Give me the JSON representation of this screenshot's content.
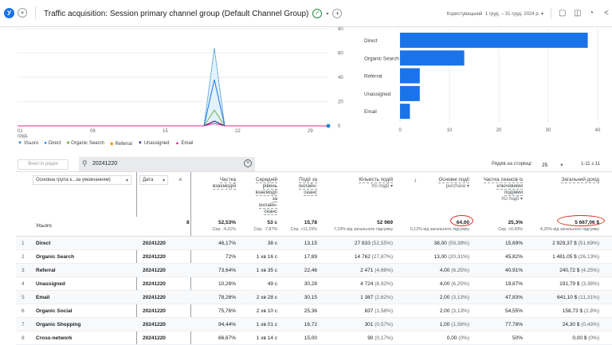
{
  "header": {
    "avatar": "У",
    "title": "Traffic acquisition: Session primary channel group (Default Channel Group)",
    "date_label": "Користувацький",
    "date_range": "1 груд. – 31 груд. 2024 р."
  },
  "line_chart": {
    "type": "line",
    "x_ticks": [
      "01",
      "08",
      "15",
      "22",
      "29"
    ],
    "x_sub": "груд.",
    "y_ticks": [
      "0",
      "20",
      "40",
      "60",
      "80"
    ],
    "ylim": [
      0,
      80
    ],
    "legend": [
      {
        "name": "Усього",
        "color": "#1e88c8",
        "mark": "▼"
      },
      {
        "name": "Direct",
        "color": "#1a73e8",
        "mark": "●"
      },
      {
        "name": "Organic Search",
        "color": "#7cb342",
        "mark": "■"
      },
      {
        "name": "Referral",
        "color": "#f29900",
        "mark": "◆"
      },
      {
        "name": "Unassigned",
        "color": "#1a237e",
        "mark": "▼"
      },
      {
        "name": "Email",
        "color": "#e52592",
        "mark": "▲"
      }
    ],
    "series_peak_day": 20,
    "peaks": {
      "Усього": 64,
      "Direct": 38,
      "Organic Search": 13,
      "Referral": 4,
      "Unassigned": 4,
      "Email": 2
    }
  },
  "chart_data": {
    "type": "bar",
    "orientation": "horizontal",
    "categories": [
      "Direct",
      "Organic Search",
      "Referral",
      "Unassigned",
      "Email"
    ],
    "values": [
      38,
      13,
      4,
      4,
      2
    ],
    "x_ticks": [
      "0",
      "10",
      "20",
      "30",
      "40"
    ],
    "xlim": [
      0,
      40
    ],
    "color": "#1a73e8"
  },
  "toolbar": {
    "add_rows": "Внести рядки",
    "search_value": "20241220",
    "rows_per_page_label": "Рядків на сторінці:",
    "rows_per_page": "25",
    "pagination": "1-11 з 11"
  },
  "table": {
    "dim1": "Основна група к...за умовчанням)",
    "dim2": "Дата",
    "headers": [
      {
        "label": "Частка взаємодій",
        "sub": ""
      },
      {
        "label": "Середній рівень взаємодії за онлайн-сеанс",
        "sub": ""
      },
      {
        "label": "Події за онлайн-сеанс",
        "sub": ""
      },
      {
        "label": "Кількість подій",
        "sub": "Усі події"
      },
      {
        "label": "Основні події",
        "sub": "purchase"
      },
      {
        "label": "Частка сеансів із ключовими подіями",
        "sub": "Усі події"
      },
      {
        "label": "Загальний дохід",
        "sub": ""
      }
    ],
    "total_label": "Усього",
    "totals": [
      {
        "v": "52,53%",
        "s": "Сер. -4,31%"
      },
      {
        "v": "53 с",
        "s": "Сер. -7,87%"
      },
      {
        "v": "15,78",
        "s": "Сер. +11,15%"
      },
      {
        "v": "52 969",
        "s": "7,19% від загального підсумку"
      },
      {
        "v": "64,00",
        "s": "0,12% від загального підсумку"
      },
      {
        "v": "25,3%",
        "s": "Сер. +0,43%"
      },
      {
        "v": "5 667,06 $",
        "s": "4,25% від загального підсумку"
      }
    ],
    "rows": [
      {
        "n": "1",
        "ch": "Direct",
        "d": "20241220",
        "c": [
          "46,17%",
          "38 с",
          "13,15",
          "27 833",
          "(52,55%)",
          "38,00",
          "(59,38%)",
          "15,69%",
          "2 929,37 $",
          "(51,69%)"
        ]
      },
      {
        "n": "2",
        "ch": "Organic Search",
        "d": "20241220",
        "c": [
          "72%",
          "1 хв 16 с",
          "17,89",
          "14 762",
          "(27,87%)",
          "13,00",
          "(20,31%)",
          "45,82%",
          "1 481,05 $",
          "(26,13%)"
        ]
      },
      {
        "n": "3",
        "ch": "Referral",
        "d": "20241220",
        "c": [
          "73,64%",
          "1 хв 35 с",
          "22,46",
          "2 471",
          "(4,66%)",
          "4,00",
          "(6,25%)",
          "40,91%",
          "240,72 $",
          "(4,25%)"
        ]
      },
      {
        "n": "4",
        "ch": "Unassigned",
        "d": "20241220",
        "c": [
          "10,26%",
          "49 с",
          "30,28",
          "4 724",
          "(8,92%)",
          "4,00",
          "(6,25%)",
          "19,87%",
          "191,79 $",
          "(3,38%)"
        ]
      },
      {
        "n": "5",
        "ch": "Email",
        "d": "20241220",
        "c": [
          "78,26%",
          "2 хв 28 с",
          "30,15",
          "1 387",
          "(2,62%)",
          "2,00",
          "(3,13%)",
          "47,83%",
          "641,10 $",
          "(11,31%)"
        ]
      },
      {
        "n": "6",
        "ch": "Organic Social",
        "d": "20241220",
        "c": [
          "75,76%",
          "2 хв 10 с",
          "25,36",
          "837",
          "(1,58%)",
          "2,00",
          "(3,13%)",
          "54,55%",
          "158,73 $",
          "(2,8%)"
        ]
      },
      {
        "n": "7",
        "ch": "Organic Shopping",
        "d": "20241220",
        "c": [
          "94,44%",
          "1 хв 01 с",
          "16,72",
          "301",
          "(0,57%)",
          "1,00",
          "(1,56%)",
          "77,78%",
          "24,30 $",
          "(0,43%)"
        ]
      },
      {
        "n": "8",
        "ch": "Cross-network",
        "d": "20241220",
        "c": [
          "66,67%",
          "1 хв 14 с",
          "15,00",
          "90",
          "(0,17%)",
          "0,00",
          "(0%)",
          "50%",
          "0,00 $",
          "(0%)"
        ]
      }
    ]
  }
}
